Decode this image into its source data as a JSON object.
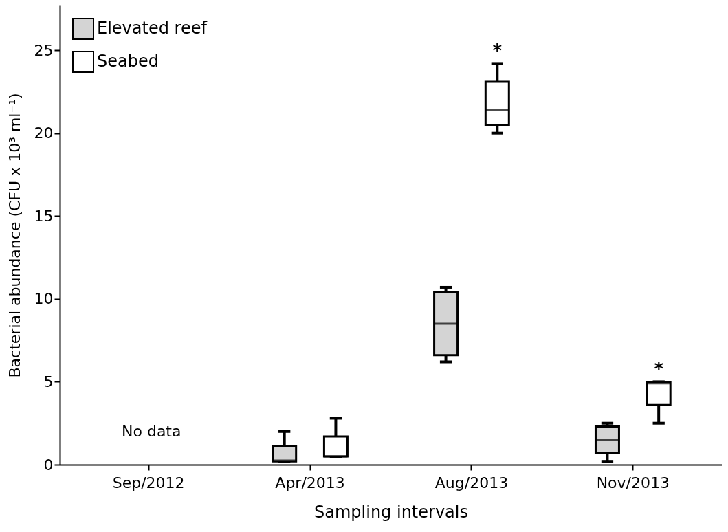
{
  "chart_data": {
    "type": "box",
    "xlabel": "Sampling intervals",
    "ylabel": "Bacterial abundance (CFU x 10³ ml⁻¹)",
    "categories": [
      "Sep/2012",
      "Apr/2013",
      "Aug/2013",
      "Nov/2013"
    ],
    "ylim": [
      0,
      27.7
    ],
    "yticks": [
      0,
      5,
      10,
      15,
      20,
      25
    ],
    "grid": false,
    "legend": "top left",
    "series": [
      {
        "name": "Elevated reef",
        "color": "#d4d4d4",
        "boxes": [
          null,
          {
            "low": 0.2,
            "q1": 0.2,
            "median": 0.25,
            "q3": 1.1,
            "high": 2.0
          },
          {
            "low": 6.2,
            "q1": 6.6,
            "median": 8.5,
            "q3": 10.4,
            "high": 10.7
          },
          {
            "low": 0.2,
            "q1": 0.7,
            "median": 1.5,
            "q3": 2.3,
            "high": 2.5
          }
        ]
      },
      {
        "name": "Seabed",
        "color": "#ffffff",
        "boxes": [
          null,
          {
            "low": 0.5,
            "q1": 0.5,
            "median": 0.5,
            "q3": 1.7,
            "high": 2.8
          },
          {
            "low": 20.0,
            "q1": 20.5,
            "median": 21.4,
            "q3": 23.1,
            "high": 24.2
          },
          {
            "low": 2.5,
            "q1": 3.6,
            "median": 4.9,
            "q3": 5.0,
            "high": 5.0
          }
        ]
      }
    ],
    "annotations": [
      "No data",
      "*",
      "*"
    ]
  }
}
